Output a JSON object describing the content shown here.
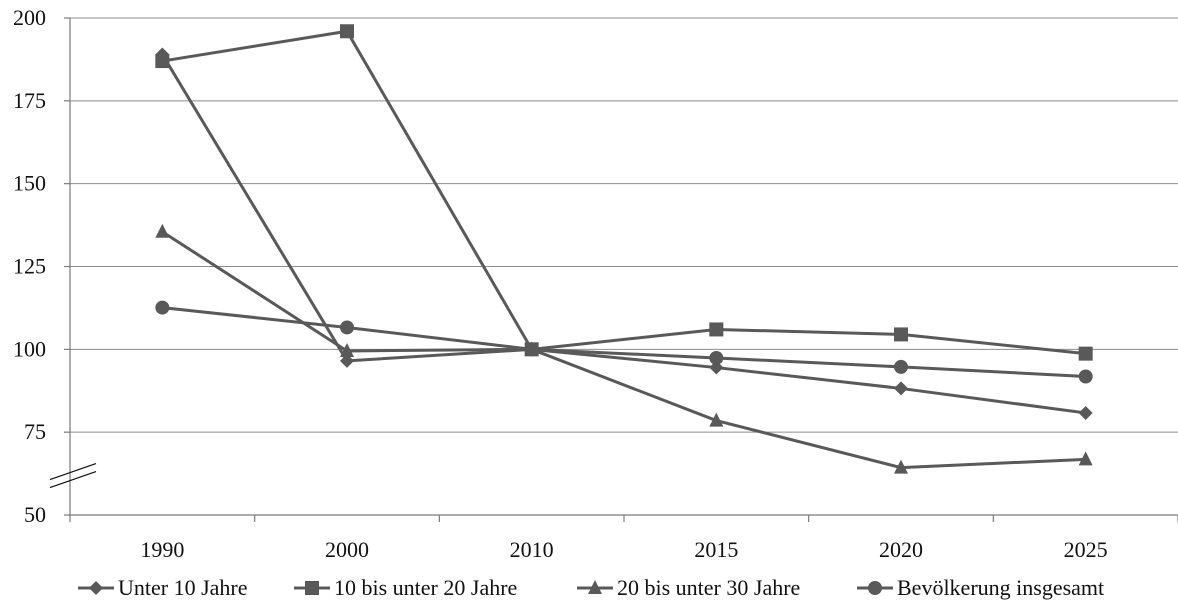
{
  "chart_data": {
    "type": "line",
    "title": "",
    "xlabel": "",
    "ylabel": "",
    "categories": [
      "1990",
      "2000",
      "2010",
      "2015",
      "2020",
      "2025"
    ],
    "ylim": [
      50,
      200
    ],
    "yticks": [
      "50",
      "75",
      "100",
      "125",
      "150",
      "175",
      "200"
    ],
    "y_axis_break": true,
    "grid": true,
    "legend_position": "bottom",
    "line_color": "#595959",
    "series": [
      {
        "name": "Unter 10 Jahre",
        "marker": "diamond",
        "values": [
          189,
          96.5,
          100,
          94.5,
          88.2,
          80.8
        ]
      },
      {
        "name": "10 bis unter 20 Jahre",
        "marker": "square",
        "values": [
          187,
          196,
          100,
          106,
          104.5,
          98.7
        ]
      },
      {
        "name": "20 bis unter 30 Jahre",
        "marker": "triangle",
        "values": [
          135.5,
          99.5,
          100,
          78.5,
          64.3,
          66.8
        ]
      },
      {
        "name": "Bevölkerung insgesamt",
        "marker": "circle",
        "values": [
          112.6,
          106.6,
          100,
          97.4,
          94.7,
          91.8
        ]
      }
    ]
  }
}
